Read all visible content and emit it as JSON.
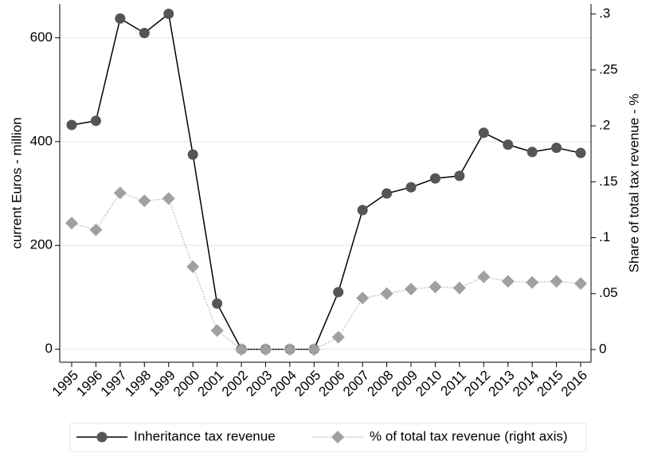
{
  "chart_data": {
    "type": "line",
    "categories": [
      "1995",
      "1996",
      "1997",
      "1998",
      "1999",
      "2000",
      "2001",
      "2002",
      "2003",
      "2004",
      "2005",
      "2006",
      "2007",
      "2008",
      "2009",
      "2010",
      "2011",
      "2012",
      "2013",
      "2014",
      "2015",
      "2016"
    ],
    "y_label": "current Euros - million",
    "y2_label": "Share of total tax revenue - %",
    "ylim": [
      -25,
      665
    ],
    "yticks": [
      0,
      200,
      400,
      600
    ],
    "y2lim": [
      -0.0114,
      0.309
    ],
    "y2ticks": [
      0,
      {
        "value": 0.05,
        "label": ".05"
      },
      {
        "value": 0.1,
        "label": ".1"
      },
      {
        "value": 0.15,
        "label": ".15"
      },
      {
        "value": 0.2,
        "label": ".2"
      },
      {
        "value": 0.25,
        "label": ".25"
      },
      {
        "value": 0.3,
        "label": ".3"
      }
    ],
    "grid": true,
    "legend": "bottom",
    "series": [
      {
        "name": "Inheritance tax revenue",
        "color": "#555555",
        "marker": "circle",
        "line": "solid",
        "values": [
          432,
          440,
          637,
          609,
          646,
          375,
          88,
          0,
          0,
          0,
          0,
          110,
          268,
          300,
          312,
          329,
          334,
          417,
          394,
          380,
          388,
          378
        ]
      },
      {
        "name": "% of total tax revenue (right axis)",
        "color": "#a0a0a0",
        "marker": "diamond",
        "line": "dotted",
        "axis": "y2",
        "values": [
          0.113,
          0.107,
          0.14,
          0.133,
          0.135,
          0.074,
          0.017,
          0,
          0,
          0,
          0,
          0.011,
          0.046,
          0.05,
          0.054,
          0.056,
          0.055,
          0.065,
          0.061,
          0.06,
          0.061,
          0.059
        ]
      }
    ]
  }
}
